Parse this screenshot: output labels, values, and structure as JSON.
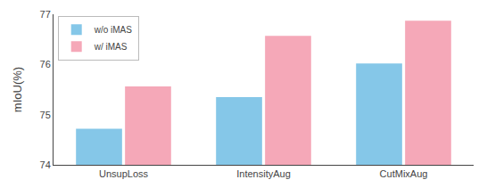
{
  "chart_data": {
    "type": "bar",
    "categories": [
      "UnsupLoss",
      "IntensityAug",
      "CutMixAug"
    ],
    "series": [
      {
        "name": "w/o iMAS",
        "color": "#85C7E8",
        "values": [
          74.72,
          75.35,
          76.02
        ]
      },
      {
        "name": "w/ iMAS",
        "color": "#F5A8B8",
        "values": [
          75.56,
          76.57,
          76.87
        ]
      }
    ],
    "ylabel": "mIoU(%)",
    "ylim": [
      74,
      77
    ],
    "yticks": [
      74,
      75,
      76,
      77
    ],
    "grid": false,
    "legend": "upper left"
  }
}
